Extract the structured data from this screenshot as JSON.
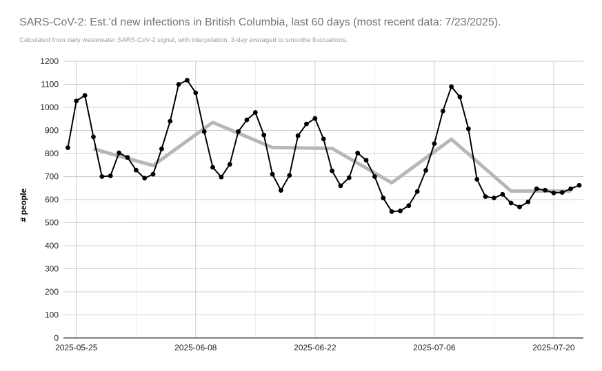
{
  "chart_data": {
    "type": "line",
    "title": "SARS-CoV-2: Est.'d new infections in British Columbia, last 60 days (most recent data: 7/23/2025).",
    "subtitle": "Calculated from daily wastewater SARS-CoV-2 signal, with interpolation. 3-day averaged to smoothe fluctuations.",
    "xlabel": "",
    "ylabel": "# people",
    "x_range": [
      "2025-05-24",
      "2025-07-23"
    ],
    "ylim": [
      0,
      1200
    ],
    "y_ticks": [
      0,
      100,
      200,
      300,
      400,
      500,
      600,
      700,
      800,
      900,
      1000,
      1100,
      1200
    ],
    "x_ticks": [
      "2025-05-25",
      "2025-06-08",
      "2025-06-22",
      "2025-07-06",
      "2025-07-20"
    ],
    "grid": true,
    "legend": "none",
    "series": [
      {
        "color": "#000000",
        "markers": true,
        "points": [
          [
            "2025-05-24",
            825
          ],
          [
            "2025-05-25",
            1028
          ],
          [
            "2025-05-26",
            1052
          ],
          [
            "2025-05-27",
            872
          ],
          [
            "2025-05-28",
            700
          ],
          [
            "2025-05-29",
            703
          ],
          [
            "2025-05-30",
            803
          ],
          [
            "2025-05-31",
            783
          ],
          [
            "2025-06-01",
            728
          ],
          [
            "2025-06-02",
            693
          ],
          [
            "2025-06-03",
            710
          ],
          [
            "2025-06-04",
            820
          ],
          [
            "2025-06-05",
            940
          ],
          [
            "2025-06-06",
            1100
          ],
          [
            "2025-06-07",
            1118
          ],
          [
            "2025-06-08",
            1063
          ],
          [
            "2025-06-09",
            895
          ],
          [
            "2025-06-10",
            740
          ],
          [
            "2025-06-11",
            698
          ],
          [
            "2025-06-12",
            753
          ],
          [
            "2025-06-13",
            895
          ],
          [
            "2025-06-14",
            946
          ],
          [
            "2025-06-15",
            978
          ],
          [
            "2025-06-16",
            880
          ],
          [
            "2025-06-17",
            710
          ],
          [
            "2025-06-18",
            640
          ],
          [
            "2025-06-19",
            705
          ],
          [
            "2025-06-20",
            877
          ],
          [
            "2025-06-21",
            928
          ],
          [
            "2025-06-22",
            952
          ],
          [
            "2025-06-23",
            863
          ],
          [
            "2025-06-24",
            725
          ],
          [
            "2025-06-25",
            660
          ],
          [
            "2025-06-26",
            695
          ],
          [
            "2025-06-27",
            802
          ],
          [
            "2025-06-28",
            771
          ],
          [
            "2025-06-29",
            700
          ],
          [
            "2025-06-30",
            607
          ],
          [
            "2025-07-01",
            548
          ],
          [
            "2025-07-02",
            551
          ],
          [
            "2025-07-03",
            574
          ],
          [
            "2025-07-04",
            635
          ],
          [
            "2025-07-05",
            727
          ],
          [
            "2025-07-06",
            843
          ],
          [
            "2025-07-07",
            984
          ],
          [
            "2025-07-08",
            1090
          ],
          [
            "2025-07-09",
            1045
          ],
          [
            "2025-07-10",
            907
          ],
          [
            "2025-07-11",
            688
          ],
          [
            "2025-07-12",
            613
          ],
          [
            "2025-07-13",
            607
          ],
          [
            "2025-07-14",
            623
          ],
          [
            "2025-07-15",
            585
          ],
          [
            "2025-07-16",
            568
          ],
          [
            "2025-07-17",
            590
          ],
          [
            "2025-07-18",
            647
          ],
          [
            "2025-07-19",
            641
          ],
          [
            "2025-07-20",
            629
          ],
          [
            "2025-07-21",
            631
          ],
          [
            "2025-07-22",
            647
          ],
          [
            "2025-07-23",
            662
          ]
        ]
      },
      {
        "color": "#b7b7b7",
        "markers": false,
        "points": [
          [
            "2025-05-27",
            820
          ],
          [
            "2025-06-03",
            748
          ],
          [
            "2025-06-10",
            935
          ],
          [
            "2025-06-17",
            826
          ],
          [
            "2025-06-24",
            822
          ],
          [
            "2025-07-01",
            673
          ],
          [
            "2025-07-08",
            862
          ],
          [
            "2025-07-15",
            637
          ],
          [
            "2025-07-22",
            637
          ]
        ]
      }
    ]
  }
}
